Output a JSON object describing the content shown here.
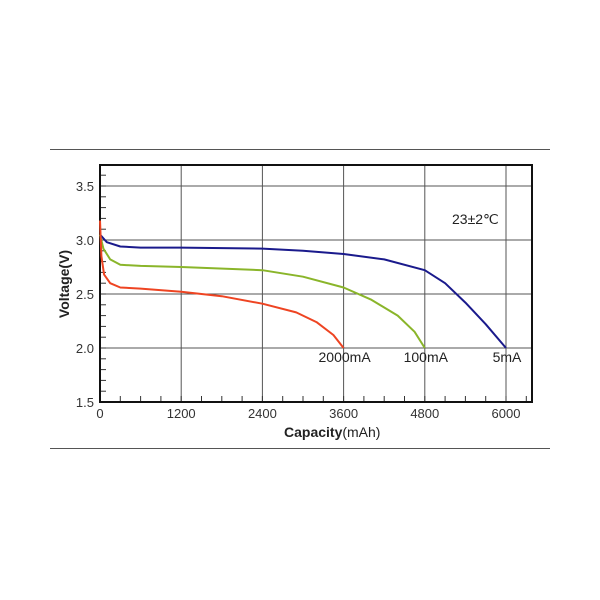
{
  "chart_data": {
    "type": "line",
    "title": "",
    "xlabel": "Capacity",
    "xlabel_unit": "(mAh)",
    "ylabel": "Voltage(V)",
    "xlim": [
      0,
      6400
    ],
    "ylim": [
      1.5,
      3.7
    ],
    "x_ticks": [
      "0",
      "1200",
      "2400",
      "3600",
      "4800",
      "6000"
    ],
    "y_ticks": [
      "1.5",
      "2.0",
      "2.5",
      "3.0",
      "3.5"
    ],
    "grid": true,
    "annotation": "23±2℃",
    "series": [
      {
        "name": "5mA",
        "color": "#1a1a8c",
        "x": [
          0,
          100,
          300,
          600,
          1200,
          2400,
          3000,
          3600,
          4200,
          4800,
          5100,
          5400,
          5700,
          6000
        ],
        "y": [
          3.05,
          2.98,
          2.94,
          2.93,
          2.93,
          2.92,
          2.9,
          2.87,
          2.82,
          2.72,
          2.6,
          2.42,
          2.22,
          2.0
        ]
      },
      {
        "name": "100mA",
        "color": "#8ab52a",
        "x": [
          0,
          50,
          150,
          300,
          600,
          1200,
          2400,
          3000,
          3600,
          4000,
          4400,
          4650,
          4800
        ],
        "y": [
          3.05,
          2.92,
          2.82,
          2.77,
          2.76,
          2.75,
          2.72,
          2.66,
          2.56,
          2.45,
          2.3,
          2.15,
          2.0
        ]
      },
      {
        "name": "2000mA",
        "color": "#ee4422",
        "x": [
          0,
          20,
          60,
          150,
          300,
          600,
          1200,
          1800,
          2400,
          2900,
          3200,
          3450,
          3600
        ],
        "y": [
          3.18,
          2.85,
          2.68,
          2.6,
          2.56,
          2.55,
          2.52,
          2.48,
          2.41,
          2.33,
          2.24,
          2.12,
          2.0
        ]
      }
    ]
  }
}
